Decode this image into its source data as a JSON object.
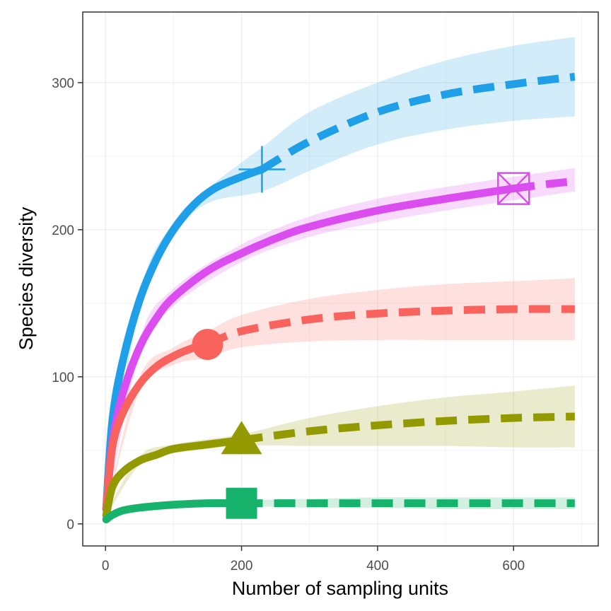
{
  "chart_data": {
    "type": "line",
    "xlabel": "Number of sampling units",
    "ylabel": "Species diversity",
    "xlim": [
      -33.5,
      724.5
    ],
    "ylim": [
      -15,
      348
    ],
    "x_ticks": [
      0,
      200,
      400,
      600
    ],
    "x_tick_labels": [
      "0",
      "200",
      "400",
      "600"
    ],
    "y_ticks": [
      0,
      100,
      200,
      300
    ],
    "y_tick_labels": [
      "0",
      "100",
      "200",
      "300"
    ],
    "grid": true,
    "legend": "none",
    "series": [
      {
        "color": "#1F9FE8",
        "marker": "plus",
        "observed_x": 230,
        "observed_y": 241,
        "interpolated": [
          [
            1,
            10
          ],
          [
            10,
            70
          ],
          [
            25,
            110
          ],
          [
            50,
            152
          ],
          [
            75,
            180
          ],
          [
            100,
            200
          ],
          [
            130,
            217
          ],
          [
            160,
            228
          ],
          [
            200,
            236
          ],
          [
            230,
            241
          ]
        ],
        "extrapolated": [
          [
            230,
            241
          ],
          [
            300,
            260
          ],
          [
            400,
            280
          ],
          [
            500,
            292
          ],
          [
            600,
            299
          ],
          [
            690,
            304
          ]
        ],
        "ci_upper": [
          [
            1,
            12
          ],
          [
            50,
            156
          ],
          [
            100,
            205
          ],
          [
            150,
            228
          ],
          [
            230,
            256
          ],
          [
            300,
            280
          ],
          [
            400,
            300
          ],
          [
            500,
            315
          ],
          [
            600,
            325
          ],
          [
            690,
            331
          ]
        ],
        "ci_lower": [
          [
            1,
            8
          ],
          [
            50,
            148
          ],
          [
            100,
            195
          ],
          [
            150,
            218
          ],
          [
            230,
            226
          ],
          [
            300,
            240
          ],
          [
            400,
            258
          ],
          [
            500,
            268
          ],
          [
            600,
            274
          ],
          [
            690,
            277
          ]
        ]
      },
      {
        "color": "#DC4DF0",
        "marker": "square-x",
        "observed_x": 600,
        "observed_y": 228,
        "interpolated": [
          [
            1,
            10
          ],
          [
            10,
            55
          ],
          [
            25,
            88
          ],
          [
            50,
            120
          ],
          [
            75,
            140
          ],
          [
            100,
            154
          ],
          [
            150,
            172
          ],
          [
            200,
            184
          ],
          [
            250,
            194
          ],
          [
            300,
            202
          ],
          [
            400,
            213
          ],
          [
            500,
            221
          ],
          [
            600,
            228
          ]
        ],
        "extrapolated": [
          [
            600,
            228
          ],
          [
            650,
            231
          ],
          [
            690,
            233
          ]
        ],
        "ci_upper": [
          [
            1,
            11
          ],
          [
            50,
            125
          ],
          [
            100,
            160
          ],
          [
            200,
            190
          ],
          [
            300,
            209
          ],
          [
            400,
            221
          ],
          [
            500,
            229
          ],
          [
            600,
            236
          ],
          [
            690,
            242
          ]
        ],
        "ci_lower": [
          [
            1,
            9
          ],
          [
            50,
            115
          ],
          [
            100,
            148
          ],
          [
            200,
            178
          ],
          [
            300,
            195
          ],
          [
            400,
            205
          ],
          [
            500,
            213
          ],
          [
            600,
            220
          ],
          [
            690,
            226
          ]
        ]
      },
      {
        "color": "#F8635D",
        "marker": "circle",
        "observed_x": 150,
        "observed_y": 122,
        "interpolated": [
          [
            1,
            10
          ],
          [
            10,
            52
          ],
          [
            25,
            75
          ],
          [
            50,
            95
          ],
          [
            75,
            107
          ],
          [
            100,
            114
          ],
          [
            125,
            119
          ],
          [
            150,
            122
          ]
        ],
        "extrapolated": [
          [
            150,
            122
          ],
          [
            200,
            131
          ],
          [
            300,
            139
          ],
          [
            400,
            143
          ],
          [
            500,
            145
          ],
          [
            600,
            146
          ],
          [
            690,
            146
          ]
        ],
        "ci_upper": [
          [
            1,
            11
          ],
          [
            50,
            100
          ],
          [
            100,
            120
          ],
          [
            150,
            131
          ],
          [
            200,
            142
          ],
          [
            300,
            153
          ],
          [
            400,
            159
          ],
          [
            500,
            163
          ],
          [
            600,
            165
          ],
          [
            690,
            167
          ]
        ],
        "ci_lower": [
          [
            1,
            9
          ],
          [
            50,
            90
          ],
          [
            100,
            108
          ],
          [
            150,
            113
          ],
          [
            200,
            120
          ],
          [
            300,
            124
          ],
          [
            400,
            125
          ],
          [
            500,
            125
          ],
          [
            600,
            125
          ],
          [
            690,
            125
          ]
        ]
      },
      {
        "color": "#929A00",
        "marker": "triangle",
        "observed_x": 200,
        "observed_y": 57,
        "interpolated": [
          [
            1,
            6
          ],
          [
            10,
            25
          ],
          [
            25,
            35
          ],
          [
            50,
            43
          ],
          [
            75,
            47
          ],
          [
            100,
            51
          ],
          [
            150,
            54
          ],
          [
            200,
            57
          ]
        ],
        "extrapolated": [
          [
            200,
            57
          ],
          [
            300,
            63
          ],
          [
            400,
            67
          ],
          [
            500,
            70
          ],
          [
            600,
            72
          ],
          [
            690,
            73
          ]
        ],
        "ci_upper": [
          [
            1,
            7
          ],
          [
            50,
            46
          ],
          [
            100,
            54
          ],
          [
            200,
            61
          ],
          [
            300,
            72
          ],
          [
            400,
            80
          ],
          [
            500,
            86
          ],
          [
            600,
            90
          ],
          [
            690,
            94
          ]
        ],
        "ci_lower": [
          [
            1,
            5
          ],
          [
            50,
            40
          ],
          [
            100,
            48
          ],
          [
            200,
            53
          ],
          [
            300,
            53
          ],
          [
            400,
            53
          ],
          [
            500,
            53
          ],
          [
            600,
            52
          ],
          [
            690,
            52
          ]
        ]
      },
      {
        "color": "#17B26B",
        "marker": "square",
        "observed_x": 200,
        "observed_y": 14,
        "interpolated": [
          [
            1,
            3
          ],
          [
            10,
            6
          ],
          [
            25,
            9
          ],
          [
            50,
            11
          ],
          [
            100,
            13
          ],
          [
            150,
            14
          ],
          [
            200,
            14
          ]
        ],
        "extrapolated": [
          [
            200,
            14
          ],
          [
            300,
            14
          ],
          [
            400,
            14
          ],
          [
            500,
            14
          ],
          [
            600,
            14
          ],
          [
            690,
            14
          ]
        ],
        "ci_upper": [
          [
            1,
            4
          ],
          [
            50,
            12
          ],
          [
            100,
            14
          ],
          [
            200,
            16
          ],
          [
            300,
            17
          ],
          [
            400,
            18
          ],
          [
            500,
            18
          ],
          [
            600,
            18
          ],
          [
            690,
            18
          ]
        ],
        "ci_lower": [
          [
            1,
            2
          ],
          [
            50,
            10
          ],
          [
            100,
            12
          ],
          [
            200,
            12
          ],
          [
            300,
            11
          ],
          [
            400,
            11
          ],
          [
            500,
            10
          ],
          [
            600,
            10
          ],
          [
            690,
            10
          ]
        ]
      }
    ]
  }
}
